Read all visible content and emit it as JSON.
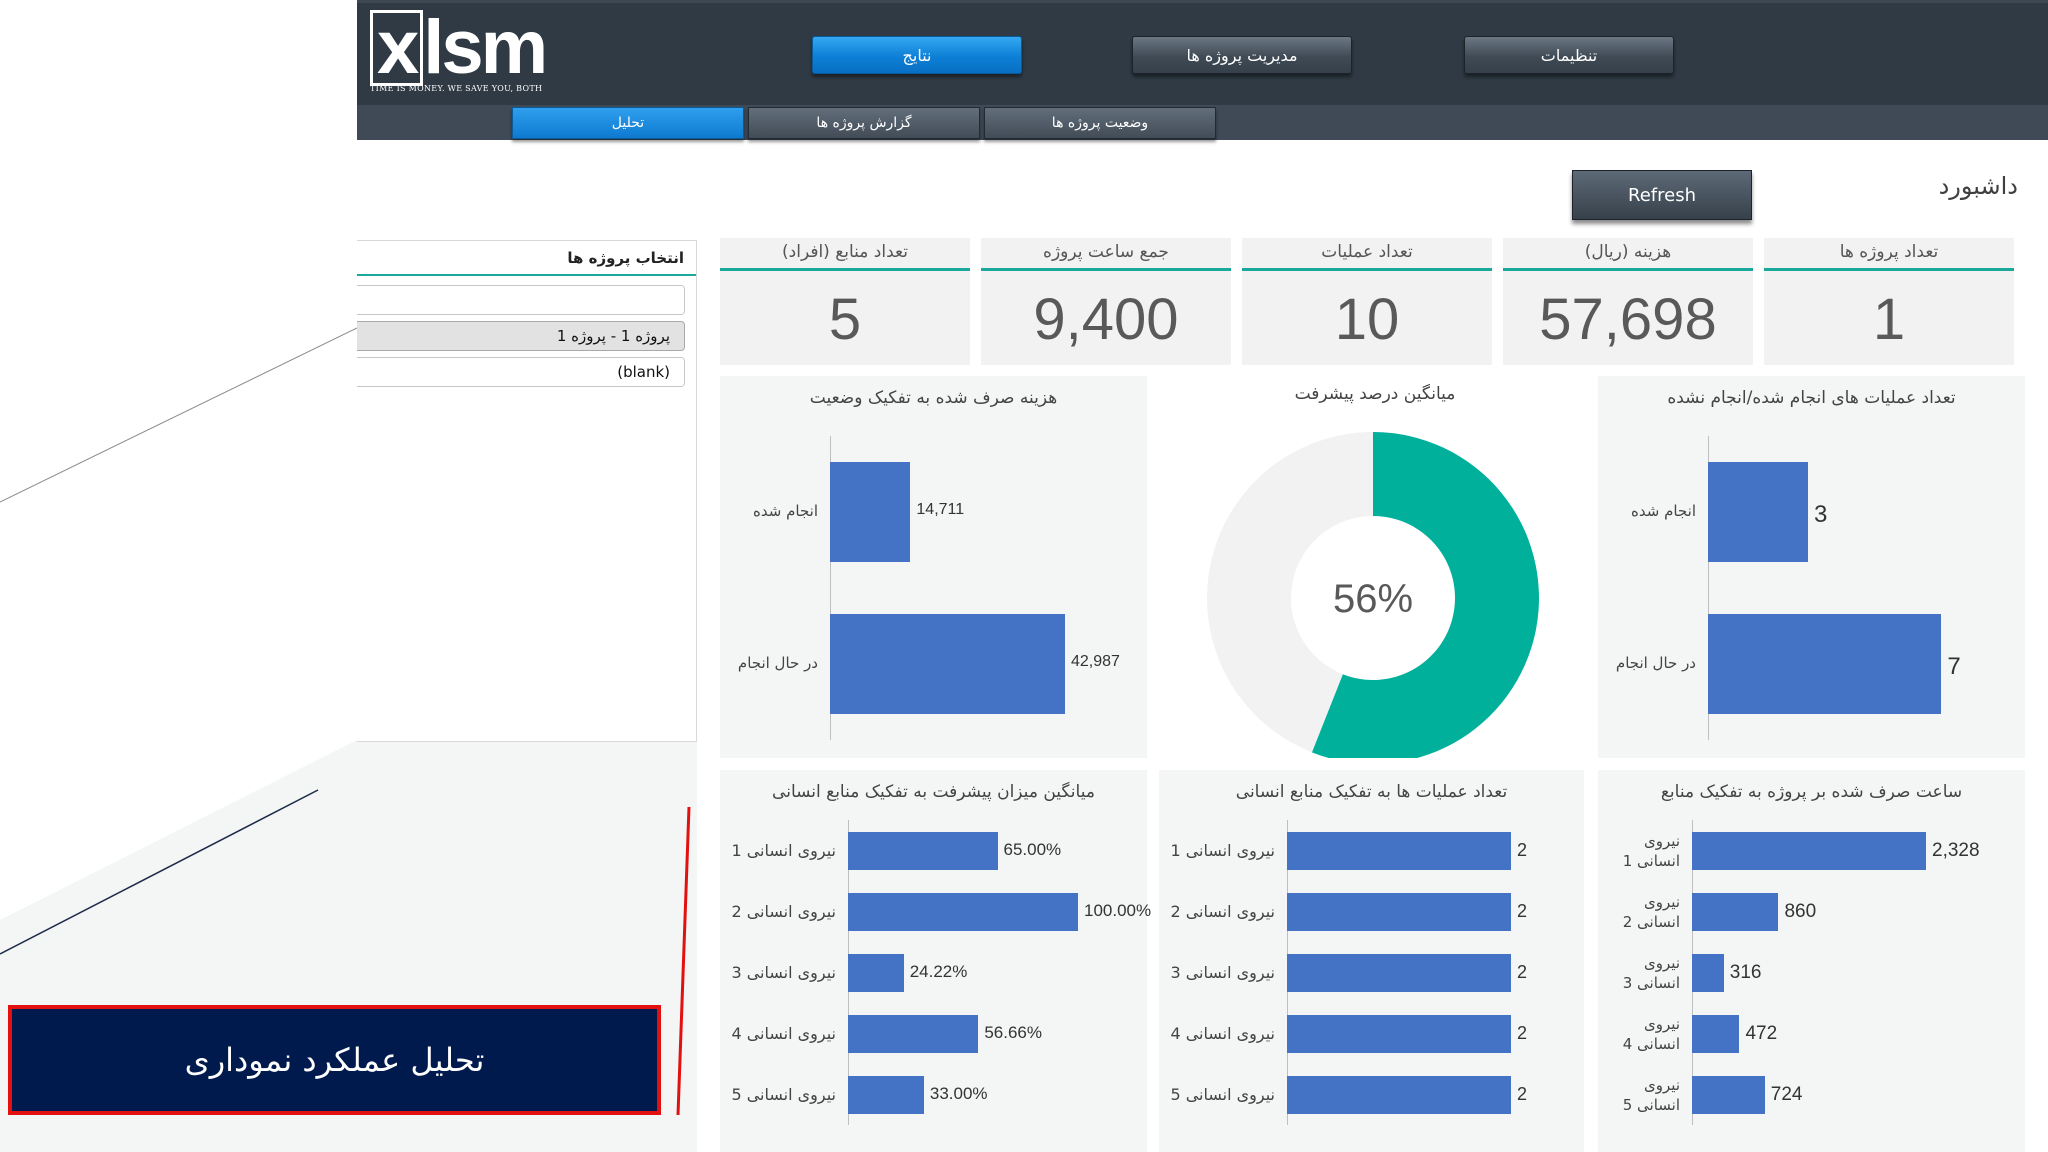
{
  "logo": {
    "mark_x": "x",
    "mark_rest": "lsm",
    "tagline": "TIME IS MONEY. WE SAVE YOU, BOTH"
  },
  "nav": {
    "main": [
      {
        "label": "نتایج",
        "active": true
      },
      {
        "label": "مدیریت پروژه ها",
        "active": false
      },
      {
        "label": "تنظیمات",
        "active": false
      }
    ],
    "sub": [
      {
        "label": "تحلیل",
        "active": true
      },
      {
        "label": "گزارش پروژه ها",
        "active": false
      },
      {
        "label": "وضعیت پروژه ها",
        "active": false
      }
    ]
  },
  "dashboard": {
    "title": "داشبورد",
    "refresh_label": "Refresh"
  },
  "slicer": {
    "title": "انتخاب پروژه ها",
    "search_value": "",
    "items": [
      {
        "label": "پروژه 1 - پروژه 1",
        "selected": true
      },
      {
        "label": "(blank)",
        "selected": false
      }
    ]
  },
  "kpis": [
    {
      "label": "تعداد منابع (افراد)",
      "value": "5"
    },
    {
      "label": "جمع ساعت پروژه",
      "value": "9,400"
    },
    {
      "label": "تعداد عملیات",
      "value": "10"
    },
    {
      "label": "هزینه (ریال)",
      "value": "57,698"
    },
    {
      "label": "تعداد پروژه ها",
      "value": "1"
    }
  ],
  "chart_data": [
    {
      "id": "cost-by-status",
      "type": "bar",
      "title": "هزینه صرف شده به تفکیک وضعیت",
      "categories": [
        "انجام شده",
        "در حال انجام"
      ],
      "values": [
        14711,
        42987
      ],
      "value_labels": [
        "14,711",
        "42,987"
      ],
      "xlim": [
        0,
        45000
      ]
    },
    {
      "id": "avg-progress",
      "type": "pie",
      "title": "میانگین درصد پیشرفت",
      "center_label": "56%",
      "values": [
        56,
        44
      ],
      "colors": [
        "#00b09b",
        "#f2f2f2"
      ]
    },
    {
      "id": "ops-done-undone",
      "type": "bar",
      "title": "تعداد عملیات های انجام شده/انجام نشده",
      "categories": [
        "انجام شده",
        "در حال انجام"
      ],
      "values": [
        3,
        7
      ],
      "value_labels": [
        "3",
        "7"
      ],
      "xlim": [
        0,
        7.8
      ]
    },
    {
      "id": "avg-progress-by-hr",
      "type": "bar",
      "title": "میانگین میزان پیشرفت به تفکیک منابع انسانی",
      "categories": [
        "نیروی انسانی 1",
        "نیروی انسانی 2",
        "نیروی انسانی 3",
        "نیروی انسانی 4",
        "نیروی انسانی 5"
      ],
      "values": [
        65,
        100,
        24.22,
        56.66,
        33
      ],
      "value_labels": [
        "65.00%",
        "100.00%",
        "24.22%",
        "56.66%",
        "33.00%"
      ],
      "xlim": [
        0,
        100
      ]
    },
    {
      "id": "ops-by-hr",
      "type": "bar",
      "title": "تعداد عملیات ها به تفکیک منابع انسانی",
      "categories": [
        "نیروی انسانی 1",
        "نیروی انسانی 2",
        "نیروی انسانی 3",
        "نیروی انسانی 4",
        "نیروی انسانی 5"
      ],
      "values": [
        2,
        2,
        2,
        2,
        2
      ],
      "value_labels": [
        "2",
        "2",
        "2",
        "2",
        "2"
      ],
      "xlim": [
        0,
        2
      ]
    },
    {
      "id": "hours-by-resource",
      "type": "bar",
      "title": "ساعت صرف شده بر پروژه به تفکیک منابع",
      "categories": [
        "نیروی انسانی 1",
        "نیروی انسانی 2",
        "نیروی انسانی 3",
        "نیروی انسانی 4",
        "نیروی انسانی 5"
      ],
      "values": [
        2328,
        860,
        316,
        472,
        724
      ],
      "value_labels": [
        "2,328",
        "860",
        "316",
        "472",
        "724"
      ],
      "xlim": [
        0,
        2328
      ]
    }
  ],
  "banner": {
    "text": "تحلیل عملکرد نموداری"
  }
}
